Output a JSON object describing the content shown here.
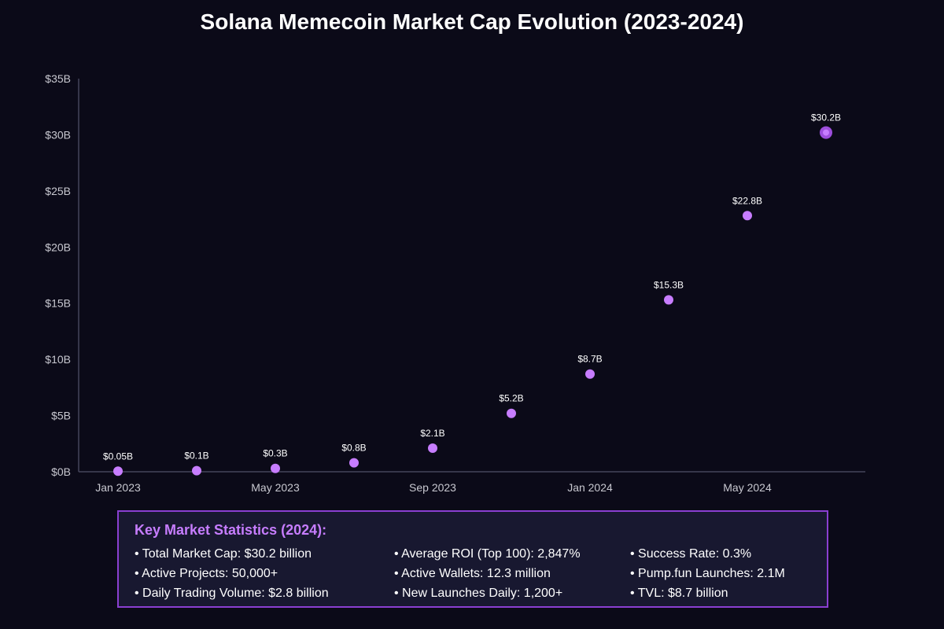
{
  "chart_data": {
    "type": "scatter",
    "title": "Solana Memecoin Market Cap Evolution (2023-2024)",
    "xlabel": "",
    "ylabel": "",
    "ylim": [
      0,
      35
    ],
    "y_ticks": [
      0,
      5,
      10,
      15,
      20,
      25,
      30,
      35
    ],
    "y_tick_labels": [
      "$0B",
      "$5B",
      "$10B",
      "$15B",
      "$20B",
      "$25B",
      "$30B",
      "$35B"
    ],
    "x_ticks": [
      0,
      2,
      4,
      6,
      8
    ],
    "x_tick_labels": [
      "Jan 2023",
      "May 2023",
      "Sep 2023",
      "Jan 2024",
      "May 2024"
    ],
    "series": [
      {
        "name": "Market Cap",
        "points": [
          {
            "x": 0,
            "value": 0.05,
            "label": "$0.05B"
          },
          {
            "x": 1,
            "value": 0.1,
            "label": "$0.1B"
          },
          {
            "x": 2,
            "value": 0.3,
            "label": "$0.3B"
          },
          {
            "x": 3,
            "value": 0.8,
            "label": "$0.8B"
          },
          {
            "x": 4,
            "value": 2.1,
            "label": "$2.1B"
          },
          {
            "x": 5,
            "value": 5.2,
            "label": "$5.2B"
          },
          {
            "x": 6,
            "value": 8.7,
            "label": "$8.7B"
          },
          {
            "x": 7,
            "value": 15.3,
            "label": "$15.3B"
          },
          {
            "x": 8,
            "value": 22.8,
            "label": "$22.8B"
          },
          {
            "x": 9,
            "value": 30.2,
            "label": "$30.2B",
            "highlight": true
          }
        ]
      }
    ]
  },
  "colors": {
    "background": "#0b0a18",
    "axis": "#44445a",
    "point": "#c77dff",
    "point_highlight": "#9d4edd",
    "accent": "#8a3fd1",
    "stats_title": "#c77dff"
  },
  "stats": {
    "title": "Key Market Statistics (2024):",
    "items": [
      "• Total Market Cap: $30.2 billion",
      "• Average ROI (Top 100): 2,847%",
      "• Success Rate: 0.3%",
      "• Active Projects: 50,000+",
      "• Active Wallets: 12.3 million",
      "• Pump.fun Launches: 2.1M",
      "• Daily Trading Volume: $2.8 billion",
      "• New Launches Daily: 1,200+",
      "• TVL: $8.7 billion"
    ]
  }
}
